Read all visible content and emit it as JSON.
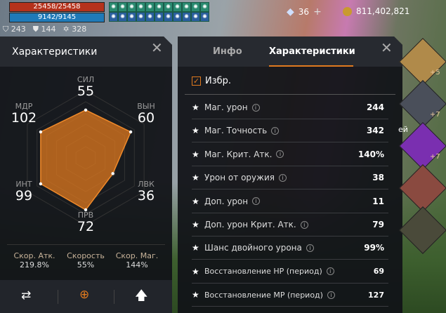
{
  "hud": {
    "hp": "25458/25458",
    "mp": "9142/9145",
    "stats": [
      {
        "icon": "shield-icon",
        "value": "243"
      },
      {
        "icon": "badge-shield-icon",
        "value": "144"
      },
      {
        "icon": "star-of-david-icon",
        "value": "328"
      }
    ],
    "diamonds": "36",
    "gold": "811,402,821"
  },
  "left_panel": {
    "title": "Характеристики",
    "stats": [
      {
        "label": "СИЛ",
        "value": 55
      },
      {
        "label": "ВЫН",
        "value": 60
      },
      {
        "label": "ЛВК",
        "value": 36
      },
      {
        "label": "ПРВ",
        "value": 72
      },
      {
        "label": "ИНТ",
        "value": 99
      },
      {
        "label": "МДР",
        "value": 102
      }
    ],
    "speeds": [
      {
        "label": "Скор. Атк.",
        "value": "219.8%"
      },
      {
        "label": "Скорость",
        "value": "55%"
      },
      {
        "label": "Скор. Маг.",
        "value": "144%"
      }
    ],
    "accent": "#e07a1f"
  },
  "right_panel": {
    "tabs": [
      "Инфо",
      "Характеристики"
    ],
    "active_tab": 1,
    "favorites_label": "Избр.",
    "rows": [
      {
        "label": "Маг. урон",
        "value": "244",
        "info": true
      },
      {
        "label": "Маг. Точность",
        "value": "342",
        "info": true
      },
      {
        "label": "Маг. Крит. Атк.",
        "value": "140%",
        "info": true
      },
      {
        "label": "Урон от оружия",
        "value": "38",
        "info": true
      },
      {
        "label": "Доп. урон",
        "value": "11",
        "info": true
      },
      {
        "label": "Доп. урон Крит. Атк.",
        "value": "79",
        "info": true
      },
      {
        "label": "Шанс двойного урона",
        "value": "99%",
        "info": true
      },
      {
        "label": "Восстановление HP (период)",
        "value": "69",
        "info": true
      },
      {
        "label": "Восстановление MP (период)",
        "value": "127",
        "info": true
      }
    ]
  },
  "equipment": [
    {
      "enhance": "+5"
    },
    {
      "enhance": "+7"
    },
    {
      "enhance": "+7"
    },
    {
      "enhance": ""
    },
    {
      "enhance": ""
    }
  ],
  "side_text": "ей"
}
